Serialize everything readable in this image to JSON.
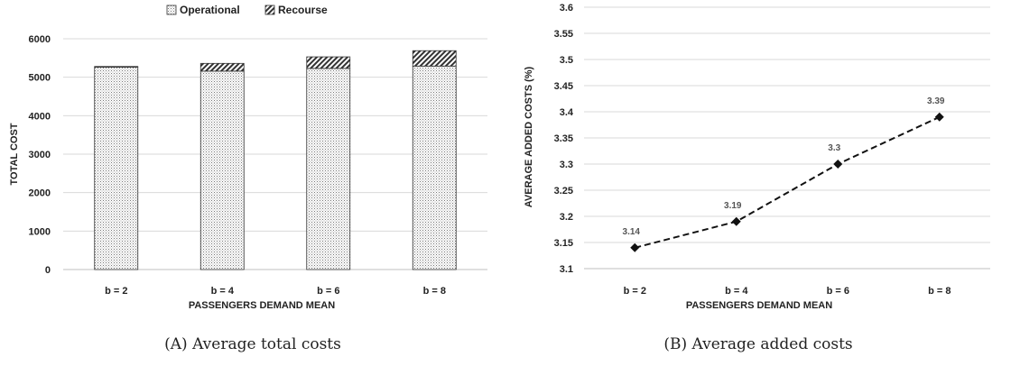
{
  "chart_data": [
    {
      "type": "bar",
      "stacked": true,
      "categories": [
        "b = 2",
        "b = 4",
        "b = 6",
        "b = 8"
      ],
      "series": [
        {
          "name": "Operational",
          "values": [
            5260,
            5160,
            5230,
            5290
          ],
          "pattern": "dots"
        },
        {
          "name": "Recourse",
          "values": [
            20,
            200,
            300,
            400
          ],
          "pattern": "diagonal-hatch"
        }
      ],
      "legend_labels": [
        "Operational",
        "Recourse"
      ],
      "legend_position": "top",
      "xlabel": "PASSENGERS DEMAND MEAN",
      "ylabel": "TOTAL COST",
      "ylim": [
        0,
        6000
      ],
      "yticks": [
        0,
        1000,
        2000,
        3000,
        4000,
        5000,
        6000
      ],
      "ytick_labels": [
        "0",
        "1000",
        "2000",
        "3000",
        "4000",
        "5000",
        "6000"
      ],
      "grid": true,
      "caption_tag": "(A)",
      "caption_text": "Average total costs"
    },
    {
      "type": "line",
      "categories": [
        "b = 2",
        "b = 4",
        "b = 6",
        "b = 8"
      ],
      "series": [
        {
          "values": [
            3.14,
            3.19,
            3.3,
            3.39
          ],
          "style": "dashed",
          "marker": "diamond"
        }
      ],
      "data_labels": [
        "3.14",
        "3.19",
        "3.3",
        "3.39"
      ],
      "xlabel": "PASSENGERS DEMAND MEAN",
      "ylabel": "AVERAGE ADDED COSTS (%)",
      "ylim": [
        3.1,
        3.6
      ],
      "yticks": [
        3.1,
        3.15,
        3.2,
        3.25,
        3.3,
        3.35,
        3.4,
        3.45,
        3.5,
        3.55,
        3.6
      ],
      "ytick_labels": [
        "3.1",
        "3.15",
        "3.2",
        "3.25",
        "3.3",
        "3.35",
        "3.4",
        "3.45",
        "3.5",
        "3.55",
        "3.6"
      ],
      "grid": true,
      "caption_tag": "(B)",
      "caption_text": "Average added costs"
    }
  ],
  "colors": {
    "bar_edge": "#333333",
    "line": "#111111",
    "grid": "#d9d9d9",
    "axis": "#bfbfbf"
  }
}
